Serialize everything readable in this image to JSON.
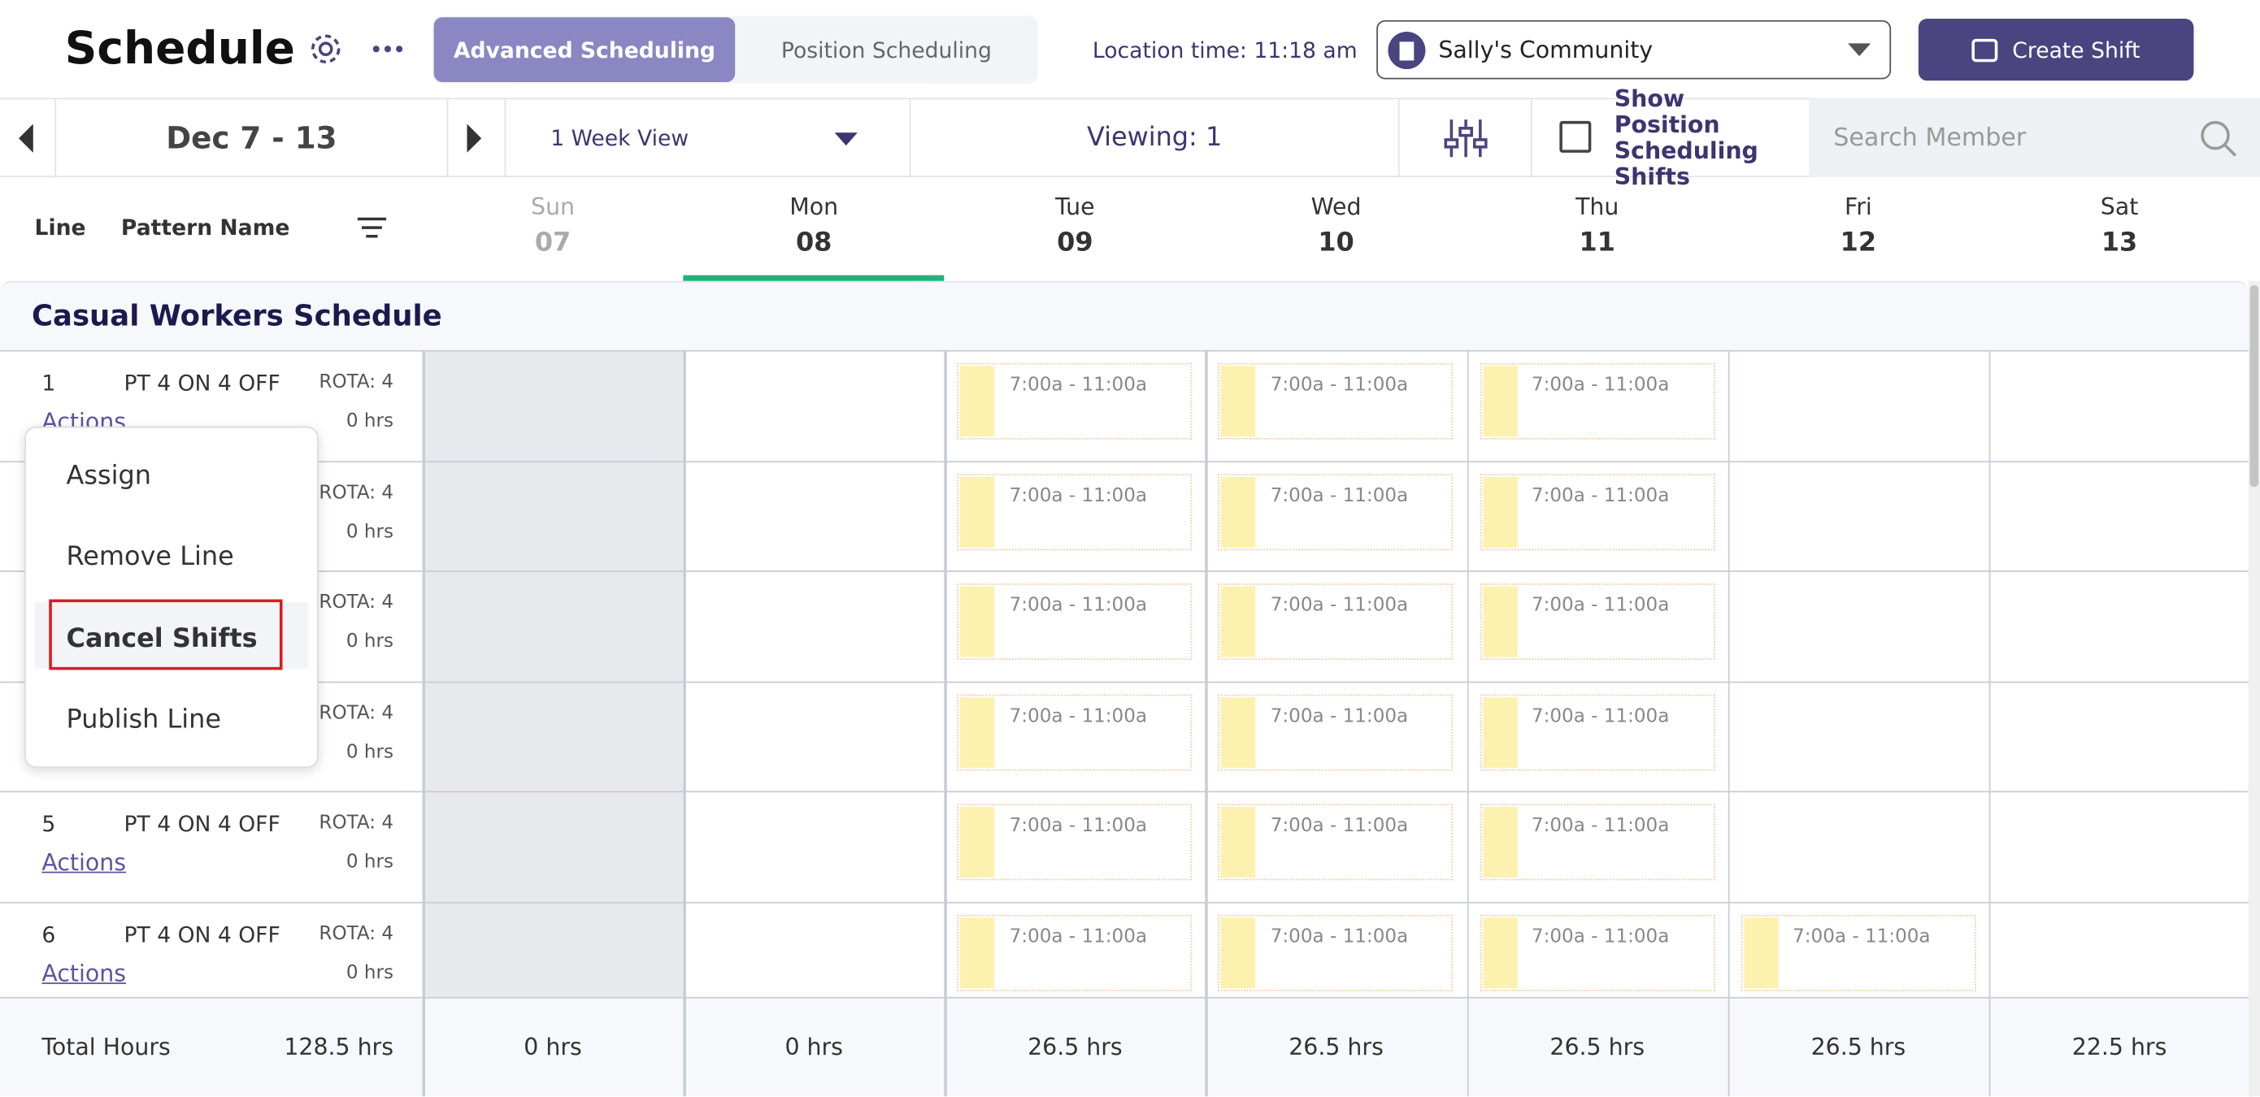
{
  "header": {
    "title": "Schedule",
    "tabs": [
      "Advanced Scheduling",
      "Position Scheduling"
    ],
    "location_time": "Location time: 11:18 am",
    "location": "Sally's Community",
    "create_button": "Create Shift"
  },
  "toolbar": {
    "date_range": "Dec 7 - 13",
    "view": "1 Week View",
    "viewing": "Viewing: 1",
    "show_position": "Show Position Scheduling Shifts",
    "search_placeholder": "Search Member"
  },
  "columns": {
    "line": "Line",
    "pattern": "Pattern Name",
    "days": [
      {
        "name": "Sun",
        "date": "07"
      },
      {
        "name": "Mon",
        "date": "08"
      },
      {
        "name": "Tue",
        "date": "09"
      },
      {
        "name": "Wed",
        "date": "10"
      },
      {
        "name": "Thu",
        "date": "11"
      },
      {
        "name": "Fri",
        "date": "12"
      },
      {
        "name": "Sat",
        "date": "13"
      }
    ]
  },
  "group": "Casual Workers Schedule",
  "rows": [
    {
      "line": "1",
      "pattern": "PT 4 ON 4 OFF",
      "rota": "ROTA: 4",
      "hours": "0 hrs",
      "actions": "Actions",
      "shifts": [
        null,
        null,
        "7:00a - 11:00a",
        "7:00a - 11:00a",
        "7:00a - 11:00a",
        null,
        null
      ]
    },
    {
      "rota": "ROTA: 4",
      "hours": "0 hrs",
      "shifts": [
        null,
        null,
        "7:00a - 11:00a",
        "7:00a - 11:00a",
        "7:00a - 11:00a",
        null,
        null
      ]
    },
    {
      "rota": "ROTA: 4",
      "hours": "0 hrs",
      "shifts": [
        null,
        null,
        "7:00a - 11:00a",
        "7:00a - 11:00a",
        "7:00a - 11:00a",
        null,
        null
      ]
    },
    {
      "rota": "ROTA: 4",
      "hours": "0 hrs",
      "shifts": [
        null,
        null,
        "7:00a - 11:00a",
        "7:00a - 11:00a",
        "7:00a - 11:00a",
        null,
        null
      ]
    },
    {
      "line": "5",
      "pattern": "PT 4 ON 4 OFF",
      "rota": "ROTA: 4",
      "hours": "0 hrs",
      "actions": "Actions",
      "shifts": [
        null,
        null,
        "7:00a - 11:00a",
        "7:00a - 11:00a",
        "7:00a - 11:00a",
        null,
        null
      ]
    },
    {
      "line": "6",
      "pattern": "PT 4 ON 4 OFF",
      "rota": "ROTA: 4",
      "hours": "0 hrs",
      "actions": "Actions",
      "shifts": [
        null,
        null,
        "7:00a - 11:00a",
        "7:00a - 11:00a",
        "7:00a - 11:00a",
        "7:00a - 11:00a",
        null
      ]
    }
  ],
  "menu": [
    "Assign",
    "Remove Line",
    "Cancel Shifts",
    "Publish Line"
  ],
  "totals": {
    "label": "Total Hours",
    "total": "128.5 hrs",
    "days": [
      "0 hrs",
      "0 hrs",
      "26.5 hrs",
      "26.5 hrs",
      "26.5 hrs",
      "26.5 hrs",
      "22.5 hrs"
    ]
  }
}
